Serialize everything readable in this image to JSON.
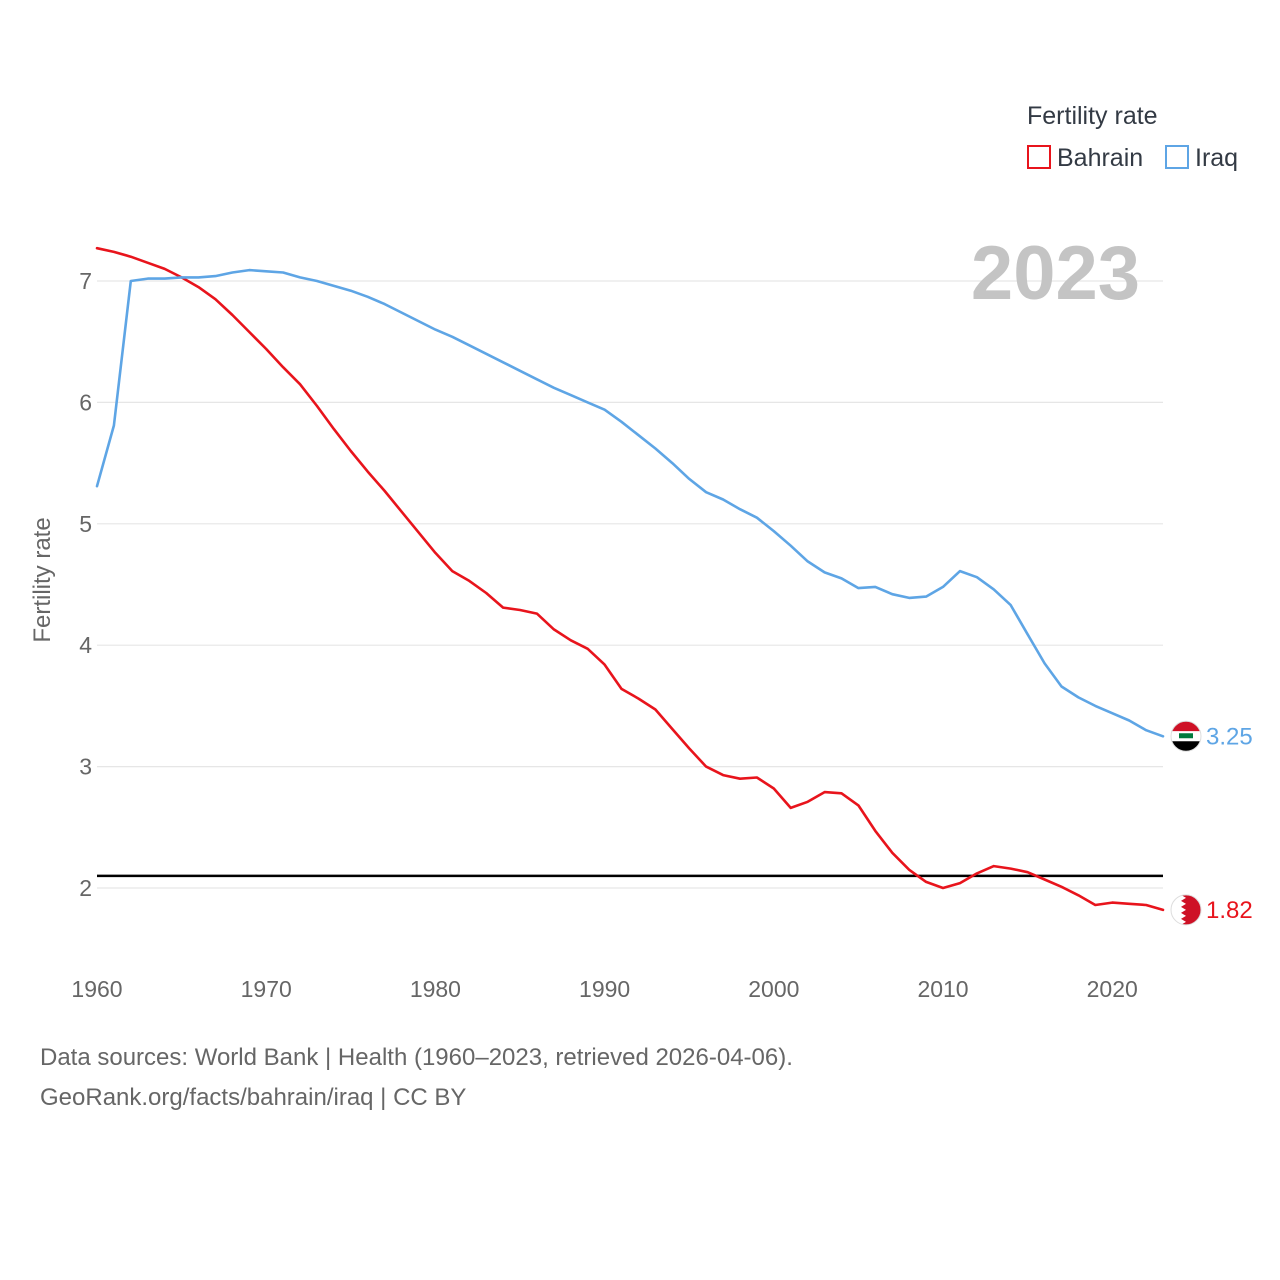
{
  "chart_data": {
    "type": "line",
    "title": "",
    "xlabel": "",
    "ylabel": "Fertility rate",
    "xlim": [
      1960,
      2023
    ],
    "ylim": [
      1.4,
      7.3
    ],
    "xticks": [
      1960,
      1970,
      1980,
      1990,
      2000,
      2010,
      2020
    ],
    "yticks": [
      2,
      3,
      4,
      5,
      6,
      7
    ],
    "year_label": "2023",
    "legend": {
      "title": "Fertility rate",
      "placement": "top-right"
    },
    "reference_line": {
      "y": 2.1,
      "color": "#000000"
    },
    "series": [
      {
        "name": "Bahrain",
        "color": "#e8141c",
        "end_label": "1.82",
        "flag": "bahrain",
        "x": [
          1960,
          1961,
          1962,
          1963,
          1964,
          1965,
          1966,
          1967,
          1968,
          1969,
          1970,
          1971,
          1972,
          1973,
          1974,
          1975,
          1976,
          1977,
          1978,
          1979,
          1980,
          1981,
          1982,
          1983,
          1984,
          1985,
          1986,
          1987,
          1988,
          1989,
          1990,
          1991,
          1992,
          1993,
          1994,
          1995,
          1996,
          1997,
          1998,
          1999,
          2000,
          2001,
          2002,
          2003,
          2004,
          2005,
          2006,
          2007,
          2008,
          2009,
          2010,
          2011,
          2012,
          2013,
          2014,
          2015,
          2016,
          2017,
          2018,
          2019,
          2020,
          2021,
          2022,
          2023
        ],
        "values": [
          7.27,
          7.24,
          7.2,
          7.15,
          7.1,
          7.03,
          6.95,
          6.85,
          6.72,
          6.58,
          6.44,
          6.29,
          6.15,
          5.97,
          5.78,
          5.6,
          5.43,
          5.27,
          5.1,
          4.93,
          4.76,
          4.61,
          4.53,
          4.43,
          4.31,
          4.29,
          4.26,
          4.13,
          4.04,
          3.97,
          3.84,
          3.64,
          3.56,
          3.47,
          3.31,
          3.15,
          3.0,
          2.93,
          2.9,
          2.91,
          2.82,
          2.66,
          2.71,
          2.79,
          2.78,
          2.68,
          2.47,
          2.29,
          2.15,
          2.05,
          2.0,
          2.04,
          2.12,
          2.18,
          2.16,
          2.13,
          2.07,
          2.01,
          1.94,
          1.86,
          1.88,
          1.87,
          1.86,
          1.82
        ]
      },
      {
        "name": "Iraq",
        "color": "#5ea5e5",
        "end_label": "3.25",
        "flag": "iraq",
        "x": [
          1960,
          1961,
          1962,
          1963,
          1964,
          1965,
          1966,
          1967,
          1968,
          1969,
          1970,
          1971,
          1972,
          1973,
          1974,
          1975,
          1976,
          1977,
          1978,
          1979,
          1980,
          1981,
          1982,
          1983,
          1984,
          1985,
          1986,
          1987,
          1988,
          1989,
          1990,
          1991,
          1992,
          1993,
          1994,
          1995,
          1996,
          1997,
          1998,
          1999,
          2000,
          2001,
          2002,
          2003,
          2004,
          2005,
          2006,
          2007,
          2008,
          2009,
          2010,
          2011,
          2012,
          2013,
          2014,
          2015,
          2016,
          2017,
          2018,
          2019,
          2020,
          2021,
          2022,
          2023
        ],
        "values": [
          5.31,
          5.81,
          7.0,
          7.02,
          7.02,
          7.03,
          7.03,
          7.04,
          7.07,
          7.09,
          7.08,
          7.07,
          7.03,
          7.0,
          6.96,
          6.92,
          6.87,
          6.81,
          6.74,
          6.67,
          6.6,
          6.54,
          6.47,
          6.4,
          6.33,
          6.26,
          6.19,
          6.12,
          6.06,
          6.0,
          5.94,
          5.84,
          5.73,
          5.62,
          5.5,
          5.37,
          5.26,
          5.2,
          5.12,
          5.05,
          4.94,
          4.82,
          4.69,
          4.6,
          4.55,
          4.47,
          4.48,
          4.42,
          4.39,
          4.4,
          4.48,
          4.61,
          4.56,
          4.46,
          4.33,
          4.09,
          3.85,
          3.66,
          3.57,
          3.5,
          3.44,
          3.38,
          3.3,
          3.25
        ]
      }
    ]
  },
  "footer": {
    "line1": "Data sources: World Bank | Health (1960–2023, retrieved 2026-04-06).",
    "line2": "GeoRank.org/facts/bahrain/iraq | CC BY"
  }
}
